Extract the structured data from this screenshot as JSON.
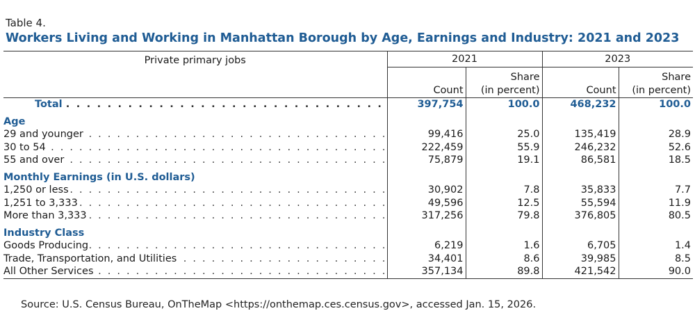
{
  "table_label": "Table 4.",
  "title": "Workers Living and Working in Manhattan Borough by Age, Earnings and Industry: 2021 and 2023",
  "stub_header": "Private primary jobs",
  "years": [
    "2021",
    "2023"
  ],
  "col_headers": {
    "count": "Count",
    "share_line1": "Share",
    "share_line2": "(in percent)"
  },
  "total": {
    "label": "Total",
    "c2021": "397,754",
    "s2021": "100.0",
    "c2023": "468,232",
    "s2023": "100.0"
  },
  "sections": [
    {
      "heading": "Age",
      "rows": [
        {
          "label": "29 and younger",
          "c2021": "99,416",
          "s2021": "25.0",
          "c2023": "135,419",
          "s2023": "28.9"
        },
        {
          "label": "30 to 54",
          "c2021": "222,459",
          "s2021": "55.9",
          "c2023": "246,232",
          "s2023": "52.6"
        },
        {
          "label": "55 and over",
          "c2021": "75,879",
          "s2021": "19.1",
          "c2023": "86,581",
          "s2023": "18.5"
        }
      ]
    },
    {
      "heading": "Monthly Earnings (in U.S. dollars)",
      "rows": [
        {
          "label": "1,250 or less",
          "c2021": "30,902",
          "s2021": "7.8",
          "c2023": "35,833",
          "s2023": "7.7"
        },
        {
          "label": "1,251 to 3,333",
          "c2021": "49,596",
          "s2021": "12.5",
          "c2023": "55,594",
          "s2023": "11.9"
        },
        {
          "label": "More than 3,333",
          "c2021": "317,256",
          "s2021": "79.8",
          "c2023": "376,805",
          "s2023": "80.5"
        }
      ]
    },
    {
      "heading": "Industry Class",
      "rows": [
        {
          "label": "Goods Producing",
          "c2021": "6,219",
          "s2021": "1.6",
          "c2023": "6,705",
          "s2023": "1.4"
        },
        {
          "label": "Trade, Transportation, and Utilities",
          "c2021": "34,401",
          "s2021": "8.6",
          "c2023": "39,985",
          "s2023": "8.5"
        },
        {
          "label": "All Other Services",
          "c2021": "357,134",
          "s2021": "89.8",
          "c2023": "421,542",
          "s2023": "90.0"
        }
      ]
    }
  ],
  "source": "Source: U.S. Census Bureau, OnTheMap <https://onthemap.ces.census.gov>, accessed Jan. 15, 2026.",
  "colors": {
    "heading_blue": "#1f5c94",
    "text": "#1a1a1a",
    "rule": "#333333"
  }
}
